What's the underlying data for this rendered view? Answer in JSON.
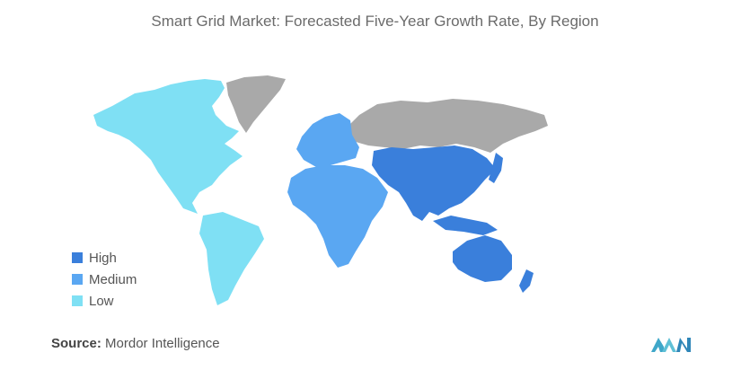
{
  "title": "Smart Grid Market: Forecasted Five-Year Growth Rate, By Region",
  "legend": [
    {
      "label": "High",
      "color": "#3a7fdb"
    },
    {
      "label": "Medium",
      "color": "#5aa7f2"
    },
    {
      "label": "Low",
      "color": "#7fe0f4"
    }
  ],
  "no_data_color": "#a9a9a9",
  "regions": {
    "north_america": "Low",
    "south_america": "Low",
    "europe": "Medium",
    "middle_east_africa": "Medium",
    "russia_greenland": "no data",
    "asia_pacific": "High"
  },
  "source": {
    "label": "Source:",
    "text": "Mordor Intelligence"
  }
}
